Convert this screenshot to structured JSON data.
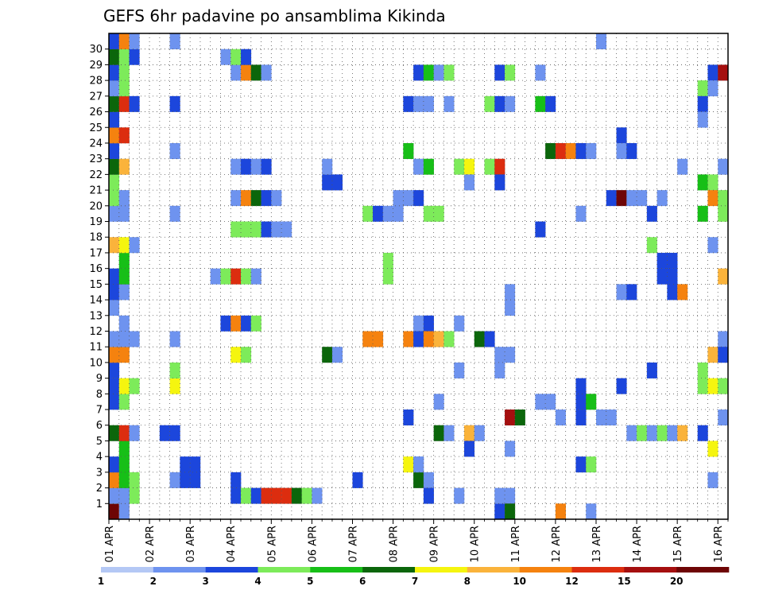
{
  "chart_data": {
    "type": "heatmap",
    "title": "GEFS 6hr padavine po ansamblima Kikinda",
    "x_labels": [
      "01 APR",
      "02 APR",
      "03 APR",
      "04 APR",
      "05 APR",
      "06 APR",
      "07 APR",
      "08 APR",
      "09 APR",
      "10 APR",
      "11 APR",
      "12 APR",
      "13 APR",
      "14 APR",
      "15 APR",
      "16 APR"
    ],
    "y_labels": [
      "1",
      "2",
      "3",
      "4",
      "5",
      "6",
      "7",
      "8",
      "9",
      "10",
      "11",
      "12",
      "13",
      "14",
      "15",
      "16",
      "17",
      "18",
      "19",
      "20",
      "21",
      "22",
      "23",
      "24",
      "25",
      "26",
      "27",
      "28",
      "29",
      "30"
    ],
    "x_steps": 61,
    "y_rows": 31,
    "grid": true,
    "legend_levels": [
      "1",
      "2",
      "3",
      "4",
      "5",
      "6",
      "7",
      "8",
      "10",
      "12",
      "15",
      "20"
    ],
    "colors": [
      "#b4c8f5",
      "#6e93ef",
      "#1c46dc",
      "#7deb5a",
      "#17bf17",
      "#0b660b",
      "#f5f50f",
      "#fab33b",
      "#f5820f",
      "#dc2d0f",
      "#a50f0f",
      "#6e0505"
    ],
    "cells": [
      {
        "m": 0,
        "t": 0,
        "c": 11
      },
      {
        "m": 0,
        "t": 1,
        "c": 7
      },
      {
        "m": 1,
        "t": 0,
        "c": 3
      },
      {
        "m": 1,
        "t": 1,
        "c": 4
      },
      {
        "m": 1,
        "t": 2,
        "c": 3
      },
      {
        "m": 1,
        "t": 1,
        "c": 4
      },
      {
        "m": 2,
        "t": 0,
        "c": 5
      },
      {
        "m": 2,
        "t": 1,
        "c": 4
      },
      {
        "m": 0,
        "t": 1,
        "c": 1
      },
      {
        "m": 1,
        "t": 0,
        "c": 1
      },
      {
        "m": 1,
        "t": 1,
        "c": 1
      },
      {
        "m": 2,
        "t": 0,
        "c": 8
      },
      {
        "m": 2,
        "t": 1,
        "c": 4
      },
      {
        "m": 2,
        "t": 2,
        "c": 3
      },
      {
        "m": 2,
        "t": 6,
        "c": 1
      },
      {
        "m": 2,
        "t": 7,
        "c": 2
      },
      {
        "m": 2,
        "t": 8,
        "c": 2
      },
      {
        "m": 3,
        "t": 0,
        "c": 2
      },
      {
        "m": 3,
        "t": 1,
        "c": 4
      },
      {
        "m": 3,
        "t": 7,
        "c": 2
      },
      {
        "m": 4,
        "t": 1,
        "c": 4
      },
      {
        "m": 5,
        "t": 0,
        "c": 5
      },
      {
        "m": 5,
        "t": 1,
        "c": 9
      },
      {
        "m": 5,
        "t": 2,
        "c": 1
      },
      {
        "m": 5,
        "t": 5,
        "c": 2
      },
      {
        "m": 5,
        "t": 6,
        "c": 2
      },
      {
        "m": 7,
        "t": 0,
        "c": 2
      },
      {
        "m": 7,
        "t": 1,
        "c": 3
      },
      {
        "m": 8,
        "t": 0,
        "c": 2
      },
      {
        "m": 8,
        "t": 1,
        "c": 6
      },
      {
        "m": 8,
        "t": 2,
        "c": 3
      },
      {
        "m": 8,
        "t": 6,
        "c": 6
      },
      {
        "m": 9,
        "t": 0,
        "c": 2
      },
      {
        "m": 9,
        "t": 6,
        "c": 3
      },
      {
        "m": 10,
        "t": 0,
        "c": 8
      },
      {
        "m": 10,
        "t": 1,
        "c": 8
      },
      {
        "m": 11,
        "t": 0,
        "c": 1
      },
      {
        "m": 11,
        "t": 1,
        "c": 1
      },
      {
        "m": 11,
        "t": 2,
        "c": 1
      },
      {
        "m": 11,
        "t": 6,
        "c": 1
      },
      {
        "m": 12,
        "t": 1,
        "c": 1
      },
      {
        "m": 13,
        "t": 0,
        "c": 1
      },
      {
        "m": 14,
        "t": 0,
        "c": 2
      },
      {
        "m": 14,
        "t": 1,
        "c": 1
      },
      {
        "m": 15,
        "t": 0,
        "c": 2
      },
      {
        "m": 15,
        "t": 1,
        "c": 4
      },
      {
        "m": 16,
        "t": 1,
        "c": 4
      },
      {
        "m": 17,
        "t": 0,
        "c": 7
      },
      {
        "m": 17,
        "t": 1,
        "c": 6
      },
      {
        "m": 17,
        "t": 2,
        "c": 1
      },
      {
        "m": 19,
        "t": 0,
        "c": 1
      },
      {
        "m": 19,
        "t": 1,
        "c": 1
      },
      {
        "m": 19,
        "t": 6,
        "c": 1
      },
      {
        "m": 20,
        "t": 0,
        "c": 3
      },
      {
        "m": 20,
        "t": 1,
        "c": 1
      },
      {
        "m": 21,
        "t": 0,
        "c": 3
      },
      {
        "m": 22,
        "t": 0,
        "c": 5
      },
      {
        "m": 22,
        "t": 1,
        "c": 7
      },
      {
        "m": 23,
        "t": 0,
        "c": 2
      },
      {
        "m": 23,
        "t": 6,
        "c": 1
      },
      {
        "m": 24,
        "t": 0,
        "c": 8
      },
      {
        "m": 24,
        "t": 1,
        "c": 9
      },
      {
        "m": 25,
        "t": 0,
        "c": 2
      },
      {
        "m": 26,
        "t": 0,
        "c": 5
      },
      {
        "m": 26,
        "t": 1,
        "c": 9
      },
      {
        "m": 26,
        "t": 2,
        "c": 2
      },
      {
        "m": 26,
        "t": 6,
        "c": 2
      },
      {
        "m": 27,
        "t": 0,
        "c": 1
      },
      {
        "m": 27,
        "t": 1,
        "c": 3
      },
      {
        "m": 28,
        "t": 0,
        "c": 2
      },
      {
        "m": 28,
        "t": 1,
        "c": 3
      },
      {
        "m": 29,
        "t": 0,
        "c": 5
      },
      {
        "m": 29,
        "t": 1,
        "c": 3
      },
      {
        "m": 29,
        "t": 2,
        "c": 2
      },
      {
        "m": 30,
        "t": 0,
        "c": 2
      },
      {
        "m": 30,
        "t": 1,
        "c": 8
      },
      {
        "m": 30,
        "t": 2,
        "c": 1
      },
      {
        "m": 30,
        "t": 6,
        "c": 1
      },
      {
        "m": 1,
        "t": 12,
        "c": 2
      },
      {
        "m": 1,
        "t": 13,
        "c": 3
      },
      {
        "m": 1,
        "t": 14,
        "c": 2
      },
      {
        "m": 1,
        "t": 15,
        "c": 9
      },
      {
        "m": 1,
        "t": 16,
        "c": 9
      },
      {
        "m": 1,
        "t": 17,
        "c": 9
      },
      {
        "m": 1,
        "t": 18,
        "c": 5
      },
      {
        "m": 1,
        "t": 19,
        "c": 3
      },
      {
        "m": 1,
        "t": 20,
        "c": 1
      },
      {
        "m": 3,
        "t": 8,
        "c": 2
      },
      {
        "m": 2,
        "t": 12,
        "c": 2
      },
      {
        "m": 10,
        "t": 12,
        "c": 6
      },
      {
        "m": 10,
        "t": 13,
        "c": 3
      },
      {
        "m": 12,
        "t": 11,
        "c": 2
      },
      {
        "m": 12,
        "t": 12,
        "c": 8
      },
      {
        "m": 12,
        "t": 13,
        "c": 2
      },
      {
        "m": 12,
        "t": 14,
        "c": 3
      },
      {
        "m": 15,
        "t": 10,
        "c": 1
      },
      {
        "m": 15,
        "t": 11,
        "c": 3
      },
      {
        "m": 15,
        "t": 12,
        "c": 9
      },
      {
        "m": 15,
        "t": 13,
        "c": 3
      },
      {
        "m": 15,
        "t": 14,
        "c": 1
      },
      {
        "m": 18,
        "t": 12,
        "c": 3
      },
      {
        "m": 18,
        "t": 13,
        "c": 3
      },
      {
        "m": 18,
        "t": 14,
        "c": 3
      },
      {
        "m": 18,
        "t": 15,
        "c": 2
      },
      {
        "m": 18,
        "t": 16,
        "c": 1
      },
      {
        "m": 18,
        "t": 17,
        "c": 1
      },
      {
        "m": 20,
        "t": 12,
        "c": 1
      },
      {
        "m": 20,
        "t": 13,
        "c": 8
      },
      {
        "m": 20,
        "t": 14,
        "c": 5
      },
      {
        "m": 20,
        "t": 15,
        "c": 2
      },
      {
        "m": 20,
        "t": 16,
        "c": 1
      },
      {
        "m": 22,
        "t": 12,
        "c": 1
      },
      {
        "m": 22,
        "t": 13,
        "c": 2
      },
      {
        "m": 22,
        "t": 14,
        "c": 1
      },
      {
        "m": 22,
        "t": 15,
        "c": 2
      },
      {
        "m": 28,
        "t": 12,
        "c": 1
      },
      {
        "m": 28,
        "t": 13,
        "c": 8
      },
      {
        "m": 28,
        "t": 14,
        "c": 5
      },
      {
        "m": 28,
        "t": 15,
        "c": 1
      },
      {
        "m": 29,
        "t": 11,
        "c": 1
      },
      {
        "m": 29,
        "t": 12,
        "c": 3
      },
      {
        "m": 29,
        "t": 13,
        "c": 2
      },
      {
        "m": 21,
        "t": 21,
        "c": 2
      },
      {
        "m": 21,
        "t": 22,
        "c": 2
      },
      {
        "m": 22,
        "t": 21,
        "c": 1
      },
      {
        "m": 10,
        "t": 21,
        "c": 5
      },
      {
        "m": 10,
        "t": 22,
        "c": 1
      },
      {
        "m": 2,
        "t": 24,
        "c": 2
      },
      {
        "m": 11,
        "t": 25,
        "c": 8
      },
      {
        "m": 19,
        "t": 25,
        "c": 3
      },
      {
        "m": 19,
        "t": 26,
        "c": 2
      },
      {
        "m": 19,
        "t": 27,
        "c": 1
      },
      {
        "m": 19,
        "t": 28,
        "c": 1
      },
      {
        "m": 15,
        "t": 27,
        "c": 3
      },
      {
        "m": 3,
        "t": 29,
        "c": 6
      },
      {
        "m": 3,
        "t": 30,
        "c": 1
      },
      {
        "m": 2,
        "t": 30,
        "c": 5
      },
      {
        "m": 2,
        "t": 31,
        "c": 1
      },
      {
        "m": 1,
        "t": 31,
        "c": 2
      },
      {
        "m": 26,
        "t": 29,
        "c": 2
      },
      {
        "m": 26,
        "t": 30,
        "c": 1
      },
      {
        "m": 26,
        "t": 31,
        "c": 1
      },
      {
        "m": 26,
        "t": 33,
        "c": 1
      },
      {
        "m": 28,
        "t": 30,
        "c": 2
      },
      {
        "m": 28,
        "t": 31,
        "c": 4
      },
      {
        "m": 28,
        "t": 32,
        "c": 1
      },
      {
        "m": 28,
        "t": 33,
        "c": 3
      },
      {
        "m": 23,
        "t": 29,
        "c": 4
      },
      {
        "m": 22,
        "t": 30,
        "c": 1
      },
      {
        "m": 22,
        "t": 31,
        "c": 4
      },
      {
        "m": 22,
        "t": 34,
        "c": 3
      },
      {
        "m": 22,
        "t": 35,
        "c": 6
      },
      {
        "m": 22,
        "t": 37,
        "c": 3
      },
      {
        "m": 22,
        "t": 38,
        "c": 9
      },
      {
        "m": 21,
        "t": 35,
        "c": 1
      },
      {
        "m": 21,
        "t": 38,
        "c": 2
      },
      {
        "m": 20,
        "t": 28,
        "c": 1
      },
      {
        "m": 20,
        "t": 29,
        "c": 1
      },
      {
        "m": 20,
        "t": 30,
        "c": 2
      },
      {
        "m": 19,
        "t": 31,
        "c": 3
      },
      {
        "m": 19,
        "t": 32,
        "c": 3
      },
      {
        "m": 16,
        "t": 27,
        "c": 3
      },
      {
        "m": 12,
        "t": 30,
        "c": 1
      },
      {
        "m": 12,
        "t": 31,
        "c": 2
      },
      {
        "m": 12,
        "t": 34,
        "c": 1
      },
      {
        "m": 11,
        "t": 26,
        "c": 8
      },
      {
        "m": 11,
        "t": 29,
        "c": 8
      },
      {
        "m": 11,
        "t": 30,
        "c": 2
      },
      {
        "m": 11,
        "t": 31,
        "c": 8
      },
      {
        "m": 11,
        "t": 32,
        "c": 7
      },
      {
        "m": 11,
        "t": 33,
        "c": 3
      },
      {
        "m": 11,
        "t": 36,
        "c": 5
      },
      {
        "m": 11,
        "t": 37,
        "c": 2
      },
      {
        "m": 10,
        "t": 38,
        "c": 1
      },
      {
        "m": 9,
        "t": 34,
        "c": 1
      },
      {
        "m": 9,
        "t": 38,
        "c": 1
      },
      {
        "m": 7,
        "t": 32,
        "c": 1
      },
      {
        "m": 6,
        "t": 29,
        "c": 2
      },
      {
        "m": 6,
        "t": 39,
        "c": 10
      },
      {
        "m": 6,
        "t": 40,
        "c": 5
      },
      {
        "m": 5,
        "t": 32,
        "c": 5
      },
      {
        "m": 5,
        "t": 33,
        "c": 1
      },
      {
        "m": 5,
        "t": 35,
        "c": 7
      },
      {
        "m": 5,
        "t": 36,
        "c": 1
      },
      {
        "m": 4,
        "t": 35,
        "c": 2
      },
      {
        "m": 4,
        "t": 39,
        "c": 1
      },
      {
        "m": 3,
        "t": 30,
        "c": 1
      },
      {
        "m": 1,
        "t": 34,
        "c": 1
      },
      {
        "m": 1,
        "t": 39,
        "c": 1
      },
      {
        "m": 0,
        "t": 38,
        "c": 2
      },
      {
        "m": 0,
        "t": 39,
        "c": 5
      },
      {
        "m": 26,
        "t": 37,
        "c": 3
      },
      {
        "m": 26,
        "t": 38,
        "c": 2
      },
      {
        "m": 26,
        "t": 39,
        "c": 1
      },
      {
        "m": 28,
        "t": 38,
        "c": 2
      },
      {
        "m": 28,
        "t": 39,
        "c": 3
      },
      {
        "m": 28,
        "t": 42,
        "c": 1
      },
      {
        "m": 26,
        "t": 42,
        "c": 4
      },
      {
        "m": 26,
        "t": 43,
        "c": 2
      },
      {
        "m": 23,
        "t": 43,
        "c": 5
      },
      {
        "m": 23,
        "t": 44,
        "c": 9
      },
      {
        "m": 23,
        "t": 45,
        "c": 8
      },
      {
        "m": 23,
        "t": 46,
        "c": 2
      },
      {
        "m": 23,
        "t": 47,
        "c": 1
      },
      {
        "m": 18,
        "t": 42,
        "c": 2
      },
      {
        "m": 19,
        "t": 46,
        "c": 1
      },
      {
        "m": 14,
        "t": 39,
        "c": 1
      },
      {
        "m": 13,
        "t": 39,
        "c": 1
      },
      {
        "m": 10,
        "t": 39,
        "c": 1
      },
      {
        "m": 7,
        "t": 42,
        "c": 1
      },
      {
        "m": 7,
        "t": 43,
        "c": 1
      },
      {
        "m": 7,
        "t": 46,
        "c": 2
      },
      {
        "m": 7,
        "t": 47,
        "c": 4
      },
      {
        "m": 8,
        "t": 46,
        "c": 2
      },
      {
        "m": 6,
        "t": 44,
        "c": 1
      },
      {
        "m": 6,
        "t": 46,
        "c": 2
      },
      {
        "m": 6,
        "t": 48,
        "c": 1
      },
      {
        "m": 6,
        "t": 49,
        "c": 1
      },
      {
        "m": 5,
        "t": 51,
        "c": 1
      },
      {
        "m": 5,
        "t": 52,
        "c": 3
      },
      {
        "m": 5,
        "t": 53,
        "c": 1
      },
      {
        "m": 3,
        "t": 46,
        "c": 2
      },
      {
        "m": 3,
        "t": 47,
        "c": 3
      },
      {
        "m": 0,
        "t": 44,
        "c": 8
      },
      {
        "m": 0,
        "t": 47,
        "c": 1
      },
      {
        "m": 24,
        "t": 50,
        "c": 2
      },
      {
        "m": 23,
        "t": 50,
        "c": 1
      },
      {
        "m": 23,
        "t": 51,
        "c": 2
      },
      {
        "m": 20,
        "t": 49,
        "c": 2
      },
      {
        "m": 20,
        "t": 50,
        "c": 11
      },
      {
        "m": 20,
        "t": 51,
        "c": 1
      },
      {
        "m": 20,
        "t": 52,
        "c": 1
      },
      {
        "m": 20,
        "t": 54,
        "c": 1
      },
      {
        "m": 19,
        "t": 53,
        "c": 2
      },
      {
        "m": 17,
        "t": 53,
        "c": 3
      },
      {
        "m": 16,
        "t": 54,
        "c": 2
      },
      {
        "m": 16,
        "t": 55,
        "c": 2
      },
      {
        "m": 15,
        "t": 54,
        "c": 2
      },
      {
        "m": 15,
        "t": 55,
        "c": 2
      },
      {
        "m": 14,
        "t": 50,
        "c": 1
      },
      {
        "m": 14,
        "t": 51,
        "c": 2
      },
      {
        "m": 14,
        "t": 55,
        "c": 2
      },
      {
        "m": 14,
        "t": 56,
        "c": 8
      },
      {
        "m": 9,
        "t": 53,
        "c": 2
      },
      {
        "m": 8,
        "t": 50,
        "c": 2
      },
      {
        "m": 5,
        "t": 54,
        "c": 3
      },
      {
        "m": 5,
        "t": 55,
        "c": 1
      },
      {
        "m": 5,
        "t": 56,
        "c": 7
      },
      {
        "m": 30,
        "t": 48,
        "c": 1
      },
      {
        "m": 28,
        "t": 59,
        "c": 2
      },
      {
        "m": 28,
        "t": 60,
        "c": 10
      },
      {
        "m": 27,
        "t": 58,
        "c": 3
      },
      {
        "m": 27,
        "t": 59,
        "c": 1
      },
      {
        "m": 26,
        "t": 58,
        "c": 2
      },
      {
        "m": 25,
        "t": 58,
        "c": 1
      },
      {
        "m": 22,
        "t": 56,
        "c": 1
      },
      {
        "m": 22,
        "t": 60,
        "c": 1
      },
      {
        "m": 21,
        "t": 58,
        "c": 4
      },
      {
        "m": 21,
        "t": 59,
        "c": 3
      },
      {
        "m": 20,
        "t": 59,
        "c": 8
      },
      {
        "m": 20,
        "t": 60,
        "c": 3
      },
      {
        "m": 19,
        "t": 58,
        "c": 4
      },
      {
        "m": 19,
        "t": 60,
        "c": 3
      },
      {
        "m": 17,
        "t": 59,
        "c": 1
      },
      {
        "m": 15,
        "t": 60,
        "c": 7
      },
      {
        "m": 11,
        "t": 60,
        "c": 1
      },
      {
        "m": 10,
        "t": 59,
        "c": 7
      },
      {
        "m": 10,
        "t": 60,
        "c": 2
      },
      {
        "m": 9,
        "t": 58,
        "c": 3
      },
      {
        "m": 8,
        "t": 58,
        "c": 3
      },
      {
        "m": 8,
        "t": 59,
        "c": 6
      },
      {
        "m": 8,
        "t": 60,
        "c": 3
      },
      {
        "m": 4,
        "t": 59,
        "c": 6
      },
      {
        "m": 5,
        "t": 58,
        "c": 2
      },
      {
        "m": 2,
        "t": 59,
        "c": 1
      },
      {
        "m": 1,
        "t": 38,
        "c": 1
      },
      {
        "m": 6,
        "t": 60,
        "c": 1
      }
    ]
  }
}
